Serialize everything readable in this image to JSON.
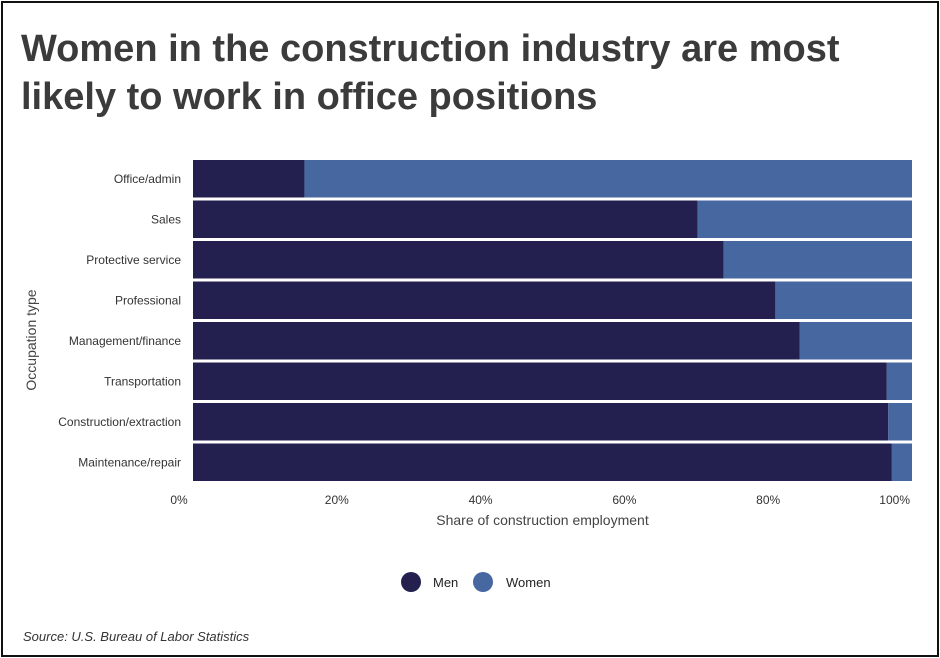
{
  "chart_data": {
    "type": "bar",
    "orientation": "horizontal",
    "stacked": true,
    "title": "Women in the construction industry are most likely to work in office positions",
    "xlabel": "Share of construction employment",
    "ylabel": "Occupation type",
    "xlim": [
      0,
      100
    ],
    "xticks": [
      "0%",
      "20%",
      "40%",
      "60%",
      "80%",
      "100%"
    ],
    "categories": [
      "Office/admin",
      "Sales",
      "Protective service",
      "Professional",
      "Management/finance",
      "Transportation",
      "Construction/extraction",
      "Maintenance/repair"
    ],
    "series": [
      {
        "name": "Men",
        "color": "#23204f",
        "values": [
          15.5,
          70.2,
          73.8,
          81.0,
          84.4,
          96.5,
          96.7,
          97.2
        ]
      },
      {
        "name": "Women",
        "color": "#4767a1",
        "values": [
          84.5,
          29.8,
          26.2,
          19.0,
          15.6,
          3.5,
          3.3,
          2.8
        ]
      }
    ],
    "legend_position": "bottom-center",
    "grid": false
  },
  "source": "Source: U.S. Bureau of Labor Statistics"
}
